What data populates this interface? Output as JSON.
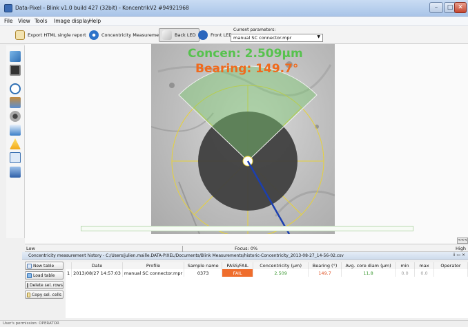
{
  "window": {
    "title": "Data-Pixel - Blink v1.0 build 427 (32bit) - KoncentrikV2 #94921968",
    "controls": [
      "–",
      "□",
      "✕"
    ]
  },
  "menu": [
    "File",
    "View",
    "Tools",
    "Image display",
    "Help"
  ],
  "toolbar": {
    "export_label": "Export HTML single report",
    "concentricity_label": "Concentricity Measurement",
    "back_led_label": "Back LED",
    "front_led_label": "Front LED",
    "params_label": "Current parameters:",
    "params_value": "manual SC connector.mpr"
  },
  "viewer": {
    "concen_text": "Concen: 2.509µm",
    "bearing_text": "Bearing: 149.7°",
    "accent_green": "#56c24d",
    "accent_orange": "#f06a1c"
  },
  "focus": {
    "low_label": "Low",
    "focus_label": "Focus: 0%",
    "high_label": "High",
    "scroll_label": "<<<"
  },
  "history": {
    "title": "Concentricity measurement history - C:/Users/julien.maille.DATA-PIXEL/Documents/Blink Measurements/historic-Concentricity_2013-08-27_14-56-02.csv",
    "window_controls": "ⅱ ▭ ✕",
    "buttons": [
      "New table",
      "Load table",
      "Delete sel. rows",
      "Copy sel. cells"
    ],
    "columns": [
      "",
      "Date",
      "Profile",
      "Sample name",
      "PASS/FAIL",
      "Concentricity (µm)",
      "Bearing (°)",
      "Avg. core diam (µm)",
      "min",
      "max",
      "Operator"
    ],
    "rows": [
      {
        "index": "1",
        "date": "2013/08/27 14:57:03",
        "profile": "manual SC connector.mpr",
        "sample": "0373",
        "pass_fail": "FAIL",
        "concentricity": "2.509",
        "bearing": "149.7",
        "core_diam": "11.8",
        "min": "0.0",
        "max": "0.0",
        "operator": ""
      }
    ]
  },
  "status": {
    "text": "User's permission: OPERATOR"
  }
}
